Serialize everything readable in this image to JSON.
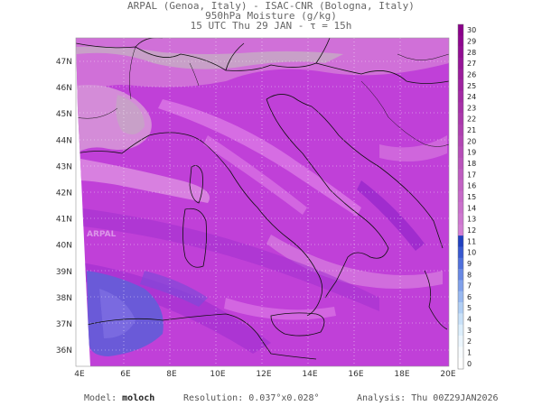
{
  "title": {
    "line1": "ARPAL (Genoa, Italy)  -  ISAC-CNR (Bologna, Italy)",
    "line2": "950hPa Moisture (g/kg)",
    "line3": "15 UTC Thu 29 JAN  -  τ = 15h"
  },
  "map": {
    "lat_labels": [
      "47N",
      "46N",
      "45N",
      "44N",
      "43N",
      "42N",
      "41N",
      "40N",
      "39N",
      "38N",
      "37N",
      "36N"
    ],
    "lon_labels": [
      "4E",
      "6E",
      "8E",
      "10E",
      "12E",
      "14E",
      "16E",
      "18E",
      "20E"
    ],
    "watermark": "ARPAL"
  },
  "colorbar": {
    "labels": [
      "30",
      "29",
      "28",
      "27",
      "26",
      "25",
      "24",
      "23",
      "22",
      "21",
      "20",
      "19",
      "18",
      "17",
      "16",
      "15",
      "14",
      "13",
      "12",
      "11",
      "10",
      "9",
      "8",
      "7",
      "6",
      "5",
      "4",
      "3",
      "2",
      "1",
      "0"
    ],
    "colors": [
      "#8a008a",
      "#8e078f",
      "#920e93",
      "#961598",
      "#9a1c9c",
      "#9e23a0",
      "#a22aa4",
      "#a631a8",
      "#aa38ac",
      "#ae3fb0",
      "#b246b4",
      "#b64db8",
      "#ba54bc",
      "#be5bc0",
      "#c262c4",
      "#c669c8",
      "#ca70cc",
      "#ce77d0",
      "#d27ed4",
      "#2040c0",
      "#3858d0",
      "#5070dc",
      "#6888e4",
      "#80a0ea",
      "#98b8f0",
      "#b0cef4",
      "#c8e0f8",
      "#dceefc",
      "#ecf6fe",
      "#f8fcff",
      "#ffffff"
    ]
  },
  "footer": {
    "model_label": "Model:",
    "model_value": "moloch",
    "resolution_label": "Resolution:",
    "resolution_value": "0.037°x0.028°",
    "analysis_label": "Analysis:",
    "analysis_value": "Thu 00Z29JAN2026"
  },
  "colors": {
    "field_base": "#c040d8",
    "field_dark": "#8a20c8",
    "field_light": "#e080e8",
    "field_grey": "#c8a0c8",
    "low_blue": "#6a5ad8"
  }
}
